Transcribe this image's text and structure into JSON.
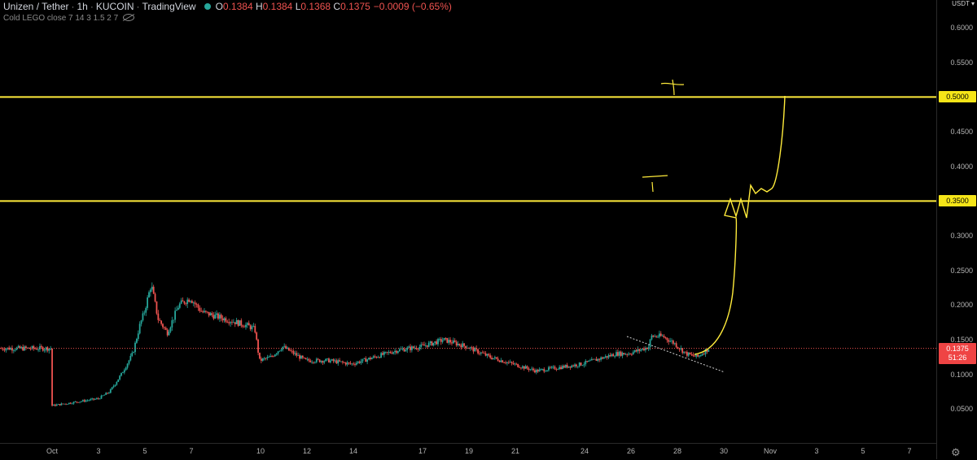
{
  "legend": {
    "symbol": "Unizen / Tether",
    "interval": "1h",
    "exchange": "KUCOIN",
    "source": "TradingView",
    "o_label": "O",
    "o_value": "0.1384",
    "h_label": "H",
    "h_value": "0.1384",
    "l_label": "L",
    "l_value": "0.1368",
    "c_label": "C",
    "c_value": "0.1375",
    "change": "−0.0009 (−0.65%)"
  },
  "indicator": {
    "label": "Cold LEGO close 7 14 3 1.5 2 7",
    "icon": "eye-hidden-icon"
  },
  "price_axis": {
    "currency": "USDT ▾",
    "ticks": [
      "0.6000",
      "0.5500",
      "0.5000",
      "0.4500",
      "0.4000",
      "0.3500",
      "0.3000",
      "0.2500",
      "0.2000",
      "0.1500",
      "0.1000",
      "0.0500"
    ],
    "tick_values": [
      0.6,
      0.55,
      0.5,
      0.45,
      0.4,
      0.35,
      0.3,
      0.25,
      0.2,
      0.15,
      0.1,
      0.05
    ],
    "level_labels": [
      "0.5000",
      "0.3500"
    ],
    "level_values": [
      0.5,
      0.35
    ],
    "current_price": "0.1375",
    "current_price_value": 0.1375,
    "countdown": "51:26"
  },
  "time_axis": {
    "labels": [
      "Oct",
      "3",
      "5",
      "7",
      "10",
      "12",
      "14",
      "17",
      "19",
      "21",
      "24",
      "26",
      "28",
      "30",
      "Nov",
      "3",
      "5",
      "7"
    ],
    "settings_icon": "gear-icon"
  },
  "chart_data": {
    "type": "candlestick-line",
    "price_range": [
      0.015,
      0.62
    ],
    "horizontal_levels": [
      0.5,
      0.35
    ],
    "current_price": 0.1375,
    "x_days": [
      0,
      1,
      2,
      2.5,
      3,
      3.5,
      3.8,
      4,
      4.3,
      4.6,
      5,
      5.5,
      6,
      6.5,
      7,
      7.5,
      8,
      8.5,
      8.8,
      9,
      9.5,
      10,
      11,
      12,
      13,
      14,
      15,
      16,
      16.5,
      17,
      17.5,
      18,
      19,
      20,
      21,
      22,
      23,
      23.5,
      24,
      24.5,
      25,
      25.5,
      25.9,
      26,
      26.5,
      27,
      27.5,
      28,
      28.5
    ],
    "close_values": [
      0.055,
      0.06,
      0.065,
      0.075,
      0.1,
      0.13,
      0.17,
      0.19,
      0.23,
      0.18,
      0.16,
      0.2,
      0.21,
      0.19,
      0.185,
      0.18,
      0.175,
      0.17,
      0.165,
      0.12,
      0.125,
      0.14,
      0.12,
      0.12,
      0.115,
      0.125,
      0.135,
      0.14,
      0.145,
      0.15,
      0.145,
      0.14,
      0.125,
      0.115,
      0.105,
      0.11,
      0.115,
      0.12,
      0.125,
      0.13,
      0.13,
      0.135,
      0.14,
      0.155,
      0.155,
      0.145,
      0.13,
      0.125,
      0.1375
    ],
    "colors": {
      "up": "#26a69a",
      "down": "#ef5350",
      "level": "#ffeb3b",
      "drawing": "#ffeb3b",
      "price_line": "#ef5350"
    }
  }
}
